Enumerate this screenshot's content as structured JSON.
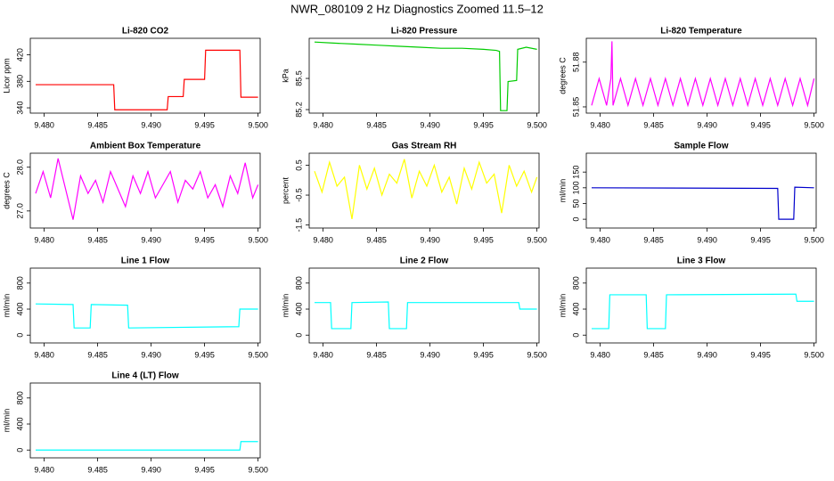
{
  "title": "NWR_080109  2 Hz Diagnostics Zoomed 11.5–12",
  "chart_data": [
    {
      "type": "line",
      "title": "Li-820 CO2",
      "y_label": "Licor ppm",
      "color": "#ff0000",
      "xlim": [
        9.4787,
        9.5002
      ],
      "xticks": [
        {
          "value": 9.48,
          "label": "9.480"
        },
        {
          "value": 9.485,
          "label": "9.485"
        },
        {
          "value": 9.49,
          "label": "9.490"
        },
        {
          "value": 9.495,
          "label": "9.495"
        },
        {
          "value": 9.5,
          "label": "9.500"
        }
      ],
      "ylim": [
        332,
        445
      ],
      "yticks": [
        340,
        380,
        420
      ],
      "x": [
        9.4792,
        9.4865,
        9.4866,
        9.4915,
        9.4916,
        9.493,
        9.4931,
        9.495,
        9.4951,
        9.4983,
        9.4984,
        9.5
      ],
      "values": [
        375,
        375,
        337,
        337,
        357,
        357,
        383,
        383,
        427,
        427,
        356,
        356
      ]
    },
    {
      "type": "line",
      "title": "Li-820 Pressure",
      "y_label": "kPa",
      "color": "#00cc00",
      "xlim": [
        9.4787,
        9.5002
      ],
      "xticks": [
        {
          "value": 9.48,
          "label": "9.480"
        },
        {
          "value": 9.485,
          "label": "9.485"
        },
        {
          "value": 9.49,
          "label": "9.490"
        },
        {
          "value": 9.495,
          "label": "9.495"
        },
        {
          "value": 9.5,
          "label": "9.500"
        }
      ],
      "ylim": [
        85.166,
        85.886
      ],
      "yticks": [
        85.2,
        85.5
      ],
      "x": [
        9.4792,
        9.481,
        9.483,
        9.485,
        9.487,
        9.489,
        9.491,
        9.493,
        9.495,
        9.4962,
        9.4965,
        9.4966,
        9.4972,
        9.4973,
        9.4981,
        9.4982,
        9.499,
        9.5
      ],
      "values": [
        85.85,
        85.84,
        85.83,
        85.82,
        85.81,
        85.8,
        85.79,
        85.79,
        85.78,
        85.77,
        85.76,
        85.19,
        85.19,
        85.47,
        85.48,
        85.78,
        85.8,
        85.78
      ]
    },
    {
      "type": "line",
      "title": "Li-820 Temperature",
      "y_label": "degrees C",
      "color": "#ff00ff",
      "xlim": [
        9.4787,
        9.5002
      ],
      "xticks": [
        {
          "value": 9.48,
          "label": "9.480"
        },
        {
          "value": 9.485,
          "label": "9.485"
        },
        {
          "value": 9.49,
          "label": "9.490"
        },
        {
          "value": 9.495,
          "label": "9.495"
        },
        {
          "value": 9.5,
          "label": "9.500"
        }
      ],
      "ylim": [
        51.8458,
        51.896
      ],
      "yticks": [
        51.85,
        51.88
      ],
      "x": [
        9.4792,
        9.4799,
        9.4806,
        9.481,
        9.4811,
        9.4812,
        9.4819,
        9.4826,
        9.4833,
        9.484,
        9.4847,
        9.4854,
        9.4861,
        9.4868,
        9.4875,
        9.4882,
        9.4889,
        9.4896,
        9.4903,
        9.491,
        9.4917,
        9.4924,
        9.4931,
        9.4938,
        9.4945,
        9.4952,
        9.4959,
        9.4966,
        9.4973,
        9.498,
        9.4987,
        9.4994,
        9.5
      ],
      "values": [
        51.851,
        51.869,
        51.851,
        51.869,
        51.894,
        51.851,
        51.869,
        51.851,
        51.869,
        51.851,
        51.869,
        51.851,
        51.869,
        51.851,
        51.869,
        51.851,
        51.869,
        51.851,
        51.869,
        51.851,
        51.869,
        51.851,
        51.869,
        51.851,
        51.869,
        51.851,
        51.869,
        51.851,
        51.869,
        51.851,
        51.869,
        51.851,
        51.869
      ]
    },
    {
      "type": "line",
      "title": "Ambient Box Temperature",
      "y_label": "degrees C",
      "color": "#ff00ff",
      "xlim": [
        9.4787,
        9.5002
      ],
      "xticks": [
        {
          "value": 9.48,
          "label": "9.480"
        },
        {
          "value": 9.485,
          "label": "9.485"
        },
        {
          "value": 9.49,
          "label": "9.490"
        },
        {
          "value": 9.495,
          "label": "9.495"
        },
        {
          "value": 9.5,
          "label": "9.500"
        }
      ],
      "ylim": [
        26.61,
        28.32
      ],
      "yticks": [
        {
          "value": 27,
          "label": "27.0"
        },
        {
          "value": 28,
          "label": "28.0"
        }
      ],
      "x": [
        9.4792,
        9.4799,
        9.4806,
        9.4813,
        9.482,
        9.4827,
        9.4834,
        9.4841,
        9.4848,
        9.4855,
        9.4862,
        9.4869,
        9.4876,
        9.4883,
        9.489,
        9.4897,
        9.4904,
        9.4911,
        9.4918,
        9.4925,
        9.4932,
        9.4939,
        9.4946,
        9.4953,
        9.496,
        9.4967,
        9.4974,
        9.4981,
        9.4988,
        9.4995,
        9.5
      ],
      "values": [
        27.4,
        27.9,
        27.3,
        28.2,
        27.5,
        26.8,
        27.8,
        27.4,
        27.7,
        27.2,
        27.9,
        27.5,
        27.1,
        27.8,
        27.4,
        27.9,
        27.3,
        27.6,
        27.9,
        27.2,
        27.7,
        27.5,
        27.9,
        27.3,
        27.6,
        27.1,
        27.8,
        27.4,
        28.1,
        27.3,
        27.6
      ]
    },
    {
      "type": "line",
      "title": "Gas Stream RH",
      "y_label": "percent",
      "color": "#ffff00",
      "xlim": [
        9.4787,
        9.5002
      ],
      "xticks": [
        {
          "value": 9.48,
          "label": "9.480"
        },
        {
          "value": 9.485,
          "label": "9.485"
        },
        {
          "value": 9.49,
          "label": "9.490"
        },
        {
          "value": 9.495,
          "label": "9.495"
        },
        {
          "value": 9.5,
          "label": "9.500"
        }
      ],
      "ylim": [
        -1.6,
        0.9
      ],
      "yticks": [
        -1.5,
        -0.5,
        0.5
      ],
      "x": [
        9.4792,
        9.4799,
        9.4806,
        9.4813,
        9.482,
        9.4827,
        9.4834,
        9.4841,
        9.4848,
        9.4855,
        9.4862,
        9.4869,
        9.4876,
        9.4883,
        9.489,
        9.4897,
        9.4904,
        9.4911,
        9.4918,
        9.4925,
        9.4932,
        9.4939,
        9.4946,
        9.4953,
        9.496,
        9.4967,
        9.4974,
        9.4981,
        9.4988,
        9.4995,
        9.5
      ],
      "values": [
        0.3,
        -0.4,
        0.6,
        -0.2,
        0.1,
        -1.3,
        0.5,
        -0.3,
        0.4,
        -0.5,
        0.2,
        -0.1,
        0.7,
        -0.6,
        0.3,
        -0.2,
        0.5,
        -0.4,
        0.1,
        -0.8,
        0.4,
        -0.3,
        0.6,
        -0.1,
        0.2,
        -1.1,
        0.5,
        -0.2,
        0.3,
        -0.4,
        0.1
      ]
    },
    {
      "type": "line",
      "title": "Sample Flow",
      "y_label": "ml/min",
      "color": "#0000cc",
      "xlim": [
        9.4787,
        9.5002
      ],
      "xticks": [
        {
          "value": 9.48,
          "label": "9.480"
        },
        {
          "value": 9.485,
          "label": "9.485"
        },
        {
          "value": 9.49,
          "label": "9.490"
        },
        {
          "value": 9.495,
          "label": "9.495"
        },
        {
          "value": 9.5,
          "label": "9.500"
        }
      ],
      "ylim": [
        -28,
        210
      ],
      "yticks": [
        0,
        50,
        100,
        150
      ],
      "x": [
        9.4792,
        9.4966,
        9.4967,
        9.4981,
        9.4982,
        9.5
      ],
      "values": [
        100,
        98,
        0,
        0,
        102,
        100
      ]
    },
    {
      "type": "line",
      "title": "Line 1 Flow",
      "y_label": "ml/min",
      "color": "#00ffff",
      "xlim": [
        9.4787,
        9.5002
      ],
      "xticks": [
        {
          "value": 9.48,
          "label": "9.480"
        },
        {
          "value": 9.485,
          "label": "9.485"
        },
        {
          "value": 9.49,
          "label": "9.490"
        },
        {
          "value": 9.495,
          "label": "9.495"
        },
        {
          "value": 9.5,
          "label": "9.500"
        }
      ],
      "ylim": [
        -120,
        1030
      ],
      "yticks": [
        0,
        400,
        800
      ],
      "x": [
        9.4792,
        9.4827,
        9.4828,
        9.4843,
        9.4844,
        9.4878,
        9.4879,
        9.4982,
        9.4983,
        9.5
      ],
      "values": [
        480,
        470,
        110,
        110,
        470,
        460,
        110,
        130,
        400,
        400
      ]
    },
    {
      "type": "line",
      "title": "Line 2 Flow",
      "y_label": "ml/min",
      "color": "#00ffff",
      "xlim": [
        9.4787,
        9.5002
      ],
      "xticks": [
        {
          "value": 9.48,
          "label": "9.480"
        },
        {
          "value": 9.485,
          "label": "9.485"
        },
        {
          "value": 9.49,
          "label": "9.490"
        },
        {
          "value": 9.495,
          "label": "9.495"
        },
        {
          "value": 9.5,
          "label": "9.500"
        }
      ],
      "ylim": [
        -120,
        1030
      ],
      "yticks": [
        0,
        400,
        800
      ],
      "x": [
        9.4792,
        9.4807,
        9.4808,
        9.4826,
        9.4827,
        9.4861,
        9.4862,
        9.4878,
        9.4879,
        9.4983,
        9.4984,
        9.5
      ],
      "values": [
        500,
        500,
        100,
        100,
        500,
        510,
        100,
        100,
        500,
        500,
        400,
        400
      ]
    },
    {
      "type": "line",
      "title": "Line 3 Flow",
      "y_label": "ml/min",
      "color": "#00ffff",
      "xlim": [
        9.4787,
        9.5002
      ],
      "xticks": [
        {
          "value": 9.48,
          "label": "9.480"
        },
        {
          "value": 9.485,
          "label": "9.485"
        },
        {
          "value": 9.49,
          "label": "9.490"
        },
        {
          "value": 9.495,
          "label": "9.495"
        },
        {
          "value": 9.5,
          "label": "9.500"
        }
      ],
      "ylim": [
        -120,
        1030
      ],
      "yticks": [
        0,
        400,
        800
      ],
      "x": [
        9.4792,
        9.4808,
        9.4809,
        9.4843,
        9.4844,
        9.4861,
        9.4862,
        9.4983,
        9.4984,
        9.5
      ],
      "values": [
        100,
        100,
        620,
        620,
        100,
        100,
        620,
        630,
        520,
        520
      ]
    },
    {
      "type": "line",
      "title": "Line 4 (LT) Flow",
      "y_label": "ml/min",
      "color": "#00ffff",
      "xlim": [
        9.4787,
        9.5002
      ],
      "xticks": [
        {
          "value": 9.48,
          "label": "9.480"
        },
        {
          "value": 9.485,
          "label": "9.485"
        },
        {
          "value": 9.49,
          "label": "9.490"
        },
        {
          "value": 9.495,
          "label": "9.495"
        },
        {
          "value": 9.5,
          "label": "9.500"
        }
      ],
      "ylim": [
        -120,
        1030
      ],
      "yticks": [
        0,
        400,
        800
      ],
      "x": [
        9.4792,
        9.4983,
        9.4984,
        9.5
      ],
      "values": [
        0,
        0,
        130,
        130
      ]
    }
  ]
}
